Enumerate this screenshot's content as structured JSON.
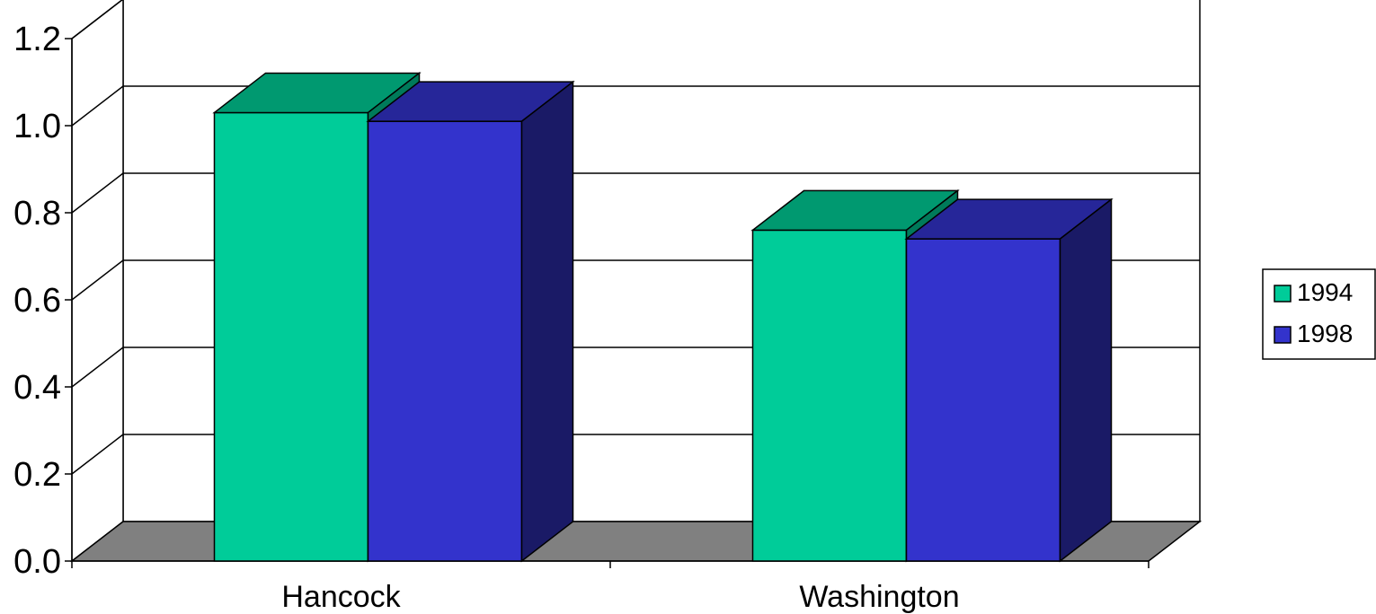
{
  "chart_data": {
    "type": "bar",
    "style": "3d-clustered-column",
    "categories": [
      "Hancock",
      "Washington"
    ],
    "series": [
      {
        "name": "1994",
        "values": [
          1.03,
          0.76
        ],
        "color": "#00cc99",
        "top_color": "#009970",
        "side_color": "#007a5a"
      },
      {
        "name": "1998",
        "values": [
          1.01,
          0.74
        ],
        "color": "#3333cc",
        "top_color": "#262699",
        "side_color": "#1a1a66"
      }
    ],
    "ylim": [
      0,
      1.2
    ],
    "yticks": [
      "0.0",
      "0.2",
      "0.4",
      "0.6",
      "0.8",
      "1.0",
      "1.2"
    ],
    "grid": true,
    "floor_color": "#808080",
    "legend_position": "right"
  }
}
